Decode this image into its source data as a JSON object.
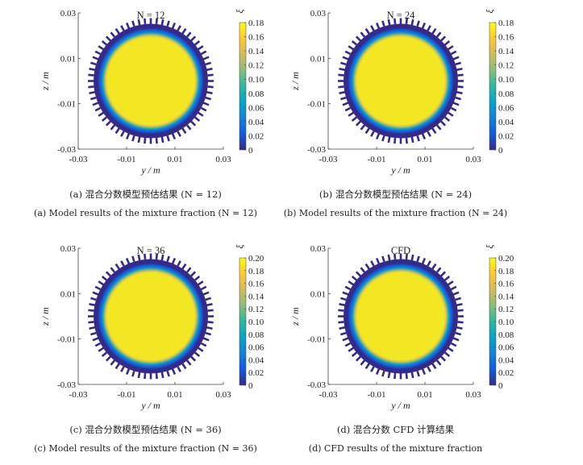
{
  "chart_data": [
    {
      "type": "heatmap",
      "title": "N = 12",
      "xlabel": "y / m",
      "ylabel": "z / m",
      "colorbar_label": "ξ",
      "xticks": [
        "-0.03",
        "-0.01",
        "0.01",
        "0.03"
      ],
      "yticks": [
        "0.03",
        "0.01",
        "-0.01",
        "-0.03"
      ],
      "xlim": [
        -0.03,
        0.03
      ],
      "ylim": [
        -0.03,
        0.03
      ],
      "colorbar_ticks": [
        "0.18",
        "0.16",
        "0.14",
        "0.12",
        "0.10",
        "0.08",
        "0.06",
        "0.04",
        "0.02",
        "0"
      ],
      "colorbar_range": [
        0,
        0.18
      ],
      "core_value": 0.18,
      "caption_zh": "(a) 混合分数模型预估结果 (N = 12)",
      "caption_en": "(a) Model results of the mixture fraction (N = 12)"
    },
    {
      "type": "heatmap",
      "title": "N = 24",
      "xlabel": "y / m",
      "ylabel": "z / m",
      "colorbar_label": "ξ",
      "xticks": [
        "-0.03",
        "-0.01",
        "0.01",
        "0.03"
      ],
      "yticks": [
        "0.03",
        "0.01",
        "-0.01",
        "-0.03"
      ],
      "xlim": [
        -0.03,
        0.03
      ],
      "ylim": [
        -0.03,
        0.03
      ],
      "colorbar_ticks": [
        "0.18",
        "0.16",
        "0.14",
        "0.12",
        "0.10",
        "0.08",
        "0.06",
        "0.04",
        "0.02",
        "0"
      ],
      "colorbar_range": [
        0,
        0.18
      ],
      "core_value": 0.18,
      "caption_zh": "(b) 混合分数模型预估结果 (N = 24)",
      "caption_en": "(b) Model results of the mixture fraction (N = 24)"
    },
    {
      "type": "heatmap",
      "title": "N = 36",
      "xlabel": "y / m",
      "ylabel": "z / m",
      "colorbar_label": "ξ",
      "xticks": [
        "-0.03",
        "-0.01",
        "0.01",
        "0.03"
      ],
      "yticks": [
        "0.03",
        "0.01",
        "-0.01",
        "-0.03"
      ],
      "xlim": [
        -0.03,
        0.03
      ],
      "ylim": [
        -0.03,
        0.03
      ],
      "colorbar_ticks": [
        "0.20",
        "0.18",
        "0.16",
        "0.14",
        "0.12",
        "0.10",
        "0.08",
        "0.06",
        "0.04",
        "0.02",
        "0"
      ],
      "colorbar_range": [
        0,
        0.2
      ],
      "core_value": 0.2,
      "caption_zh": "(c) 混合分数模型预估结果 (N = 36)",
      "caption_en": "(c) Model results of the mixture fraction (N = 36)"
    },
    {
      "type": "heatmap",
      "title": "CFD",
      "xlabel": "y / m",
      "ylabel": "z / m",
      "colorbar_label": "ξ",
      "xticks": [
        "-0.03",
        "-0.01",
        "0.01",
        "0.03"
      ],
      "yticks": [
        "0.03",
        "0.01",
        "-0.01",
        "-0.03"
      ],
      "xlim": [
        -0.03,
        0.03
      ],
      "ylim": [
        -0.03,
        0.03
      ],
      "colorbar_ticks": [
        "0.20",
        "0.18",
        "0.16",
        "0.14",
        "0.12",
        "0.10",
        "0.08",
        "0.06",
        "0.04",
        "0.02",
        "0"
      ],
      "colorbar_range": [
        0,
        0.2
      ],
      "core_value": 0.2,
      "caption_zh": "(d) 混合分数 CFD 计算结果",
      "caption_en": "(d) CFD results of the mixture fraction"
    }
  ],
  "colors": {
    "parula": [
      "#352a87",
      "#0f5cdd",
      "#1481d6",
      "#06a4ca",
      "#2eb7a4",
      "#87bf77",
      "#d1bb59",
      "#fec832",
      "#f9fb0e"
    ],
    "core": "#f2e722",
    "edge": "#3a2fa0"
  }
}
